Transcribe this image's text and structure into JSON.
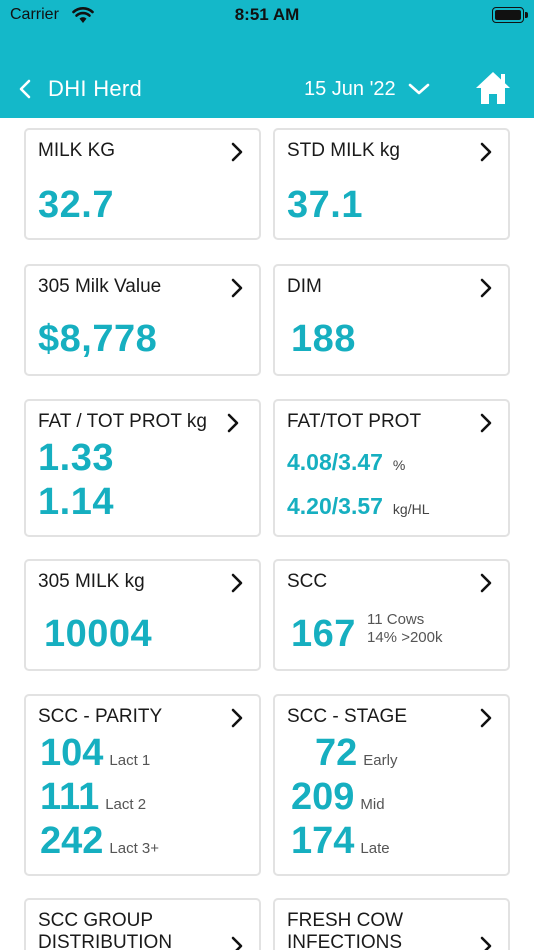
{
  "status_bar": {
    "carrier": "Carrier",
    "time": "8:51 AM"
  },
  "nav": {
    "back_label": "DHI Herd",
    "date": "15 Jun '22"
  },
  "cards": {
    "milk_kg": {
      "title": "MILK KG",
      "value": "32.7"
    },
    "std_milk": {
      "title": "STD MILK kg",
      "value": "37.1"
    },
    "milk_value": {
      "title": "305 Milk Value",
      "value": "$8,778"
    },
    "dim": {
      "title": "DIM",
      "value": "188"
    },
    "fat_prot_kg": {
      "title": "FAT / TOT PROT kg",
      "fat": "1.33",
      "prot": "1.14"
    },
    "fat_prot": {
      "title": "FAT/TOT PROT",
      "pct_value": "4.08/3.47",
      "pct_unit": "%",
      "hl_value": "4.20/3.57",
      "hl_unit": "kg/HL"
    },
    "milk_305": {
      "title": "305 MILK kg",
      "value": "10004"
    },
    "scc": {
      "title": "SCC",
      "value": "167",
      "cows": "11 Cows",
      "over": "14% >200k"
    },
    "scc_parity": {
      "title": "SCC - PARITY",
      "rows": [
        {
          "value": "104",
          "label": "Lact 1"
        },
        {
          "value": "111",
          "label": "Lact 2"
        },
        {
          "value": "242",
          "label": "Lact 3+"
        }
      ]
    },
    "scc_stage": {
      "title": "SCC - STAGE",
      "rows": [
        {
          "value": "72",
          "label": "Early"
        },
        {
          "value": "209",
          "label": "Mid"
        },
        {
          "value": "174",
          "label": "Late"
        }
      ]
    },
    "scc_group": {
      "title_line1": "SCC GROUP",
      "title_line2": "DISTRIBUTION"
    },
    "fresh_cow": {
      "title_line1": "FRESH COW",
      "title_line2": "INFECTIONS"
    }
  },
  "colors": {
    "header": "#14b8c9",
    "value": "#16afc0"
  }
}
